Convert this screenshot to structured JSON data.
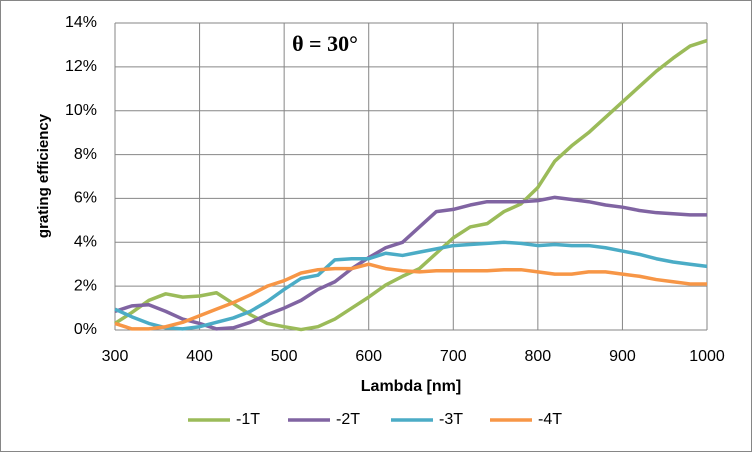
{
  "chart_data": {
    "type": "line",
    "annotation": "θ = 30°",
    "x_label": "Lambda [nm]",
    "y_label": "grating efficiency",
    "x": [
      300,
      320,
      340,
      360,
      380,
      400,
      420,
      440,
      460,
      480,
      500,
      520,
      540,
      560,
      580,
      600,
      620,
      640,
      660,
      680,
      700,
      720,
      740,
      760,
      780,
      800,
      820,
      840,
      860,
      880,
      900,
      920,
      940,
      960,
      980,
      1000
    ],
    "series": [
      {
        "name": "-1T",
        "color": "#9bbb59",
        "values": [
          0.3,
          0.8,
          1.35,
          1.65,
          1.5,
          1.55,
          1.7,
          1.2,
          0.7,
          0.3,
          0.15,
          0.02,
          0.15,
          0.5,
          1.0,
          1.5,
          2.05,
          2.45,
          2.8,
          3.5,
          4.2,
          4.7,
          4.85,
          5.4,
          5.75,
          6.5,
          7.7,
          8.4,
          9.0,
          9.7,
          10.4,
          11.1,
          11.8,
          12.4,
          12.95,
          13.2
        ]
      },
      {
        "name": "-2T",
        "color": "#8064a2",
        "values": [
          0.85,
          1.1,
          1.15,
          0.85,
          0.5,
          0.3,
          0.05,
          0.1,
          0.35,
          0.7,
          1.0,
          1.35,
          1.85,
          2.2,
          2.8,
          3.3,
          3.75,
          4.0,
          4.7,
          5.4,
          5.5,
          5.7,
          5.85,
          5.85,
          5.85,
          5.9,
          6.05,
          5.95,
          5.85,
          5.7,
          5.6,
          5.45,
          5.35,
          5.3,
          5.25,
          5.25
        ]
      },
      {
        "name": "-3T",
        "color": "#4bacc6",
        "values": [
          0.95,
          0.6,
          0.3,
          0.1,
          0.05,
          0.15,
          0.35,
          0.55,
          0.85,
          1.3,
          1.85,
          2.35,
          2.5,
          3.2,
          3.25,
          3.25,
          3.5,
          3.4,
          3.55,
          3.7,
          3.85,
          3.9,
          3.95,
          4.0,
          3.95,
          3.85,
          3.9,
          3.85,
          3.85,
          3.75,
          3.6,
          3.45,
          3.25,
          3.1,
          3.0,
          2.9
        ]
      },
      {
        "name": "-4T",
        "color": "#f79646",
        "values": [
          0.3,
          0.05,
          0.05,
          0.15,
          0.35,
          0.65,
          0.95,
          1.25,
          1.6,
          2.0,
          2.25,
          2.6,
          2.75,
          2.8,
          2.8,
          3.0,
          2.8,
          2.7,
          2.65,
          2.7,
          2.7,
          2.7,
          2.7,
          2.75,
          2.75,
          2.65,
          2.55,
          2.55,
          2.65,
          2.65,
          2.55,
          2.45,
          2.3,
          2.2,
          2.1,
          2.1
        ]
      }
    ],
    "xlim": [
      300,
      1000
    ],
    "xticks": [
      300,
      400,
      500,
      600,
      700,
      800,
      900,
      1000
    ],
    "ylim": [
      0,
      14
    ],
    "yticks": [
      {
        "value": 0,
        "label": "0%"
      },
      {
        "value": 2,
        "label": "2%"
      },
      {
        "value": 4,
        "label": "4%"
      },
      {
        "value": 6,
        "label": "6%"
      },
      {
        "value": 8,
        "label": "8%"
      },
      {
        "value": 10,
        "label": "10%"
      },
      {
        "value": 12,
        "label": "12%"
      },
      {
        "value": 14,
        "label": "14%"
      }
    ],
    "grid": true,
    "legend": "bottom"
  }
}
